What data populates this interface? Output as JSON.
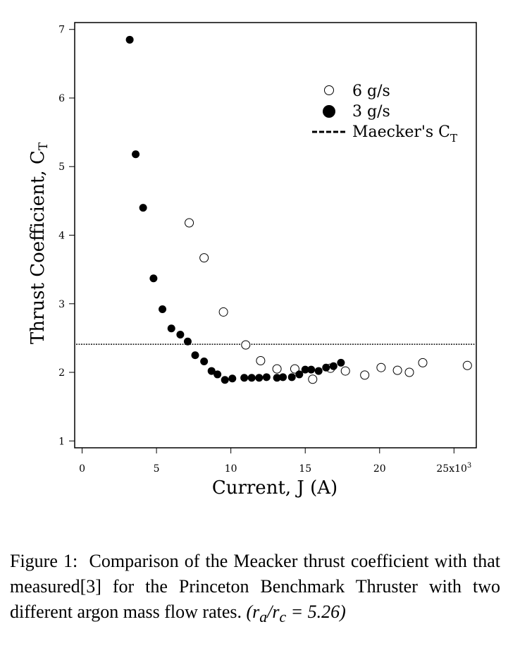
{
  "chart_data": {
    "type": "scatter",
    "title": "",
    "xlabel": "Current, J  (A)",
    "ylabel": "Thrust Coefficient, C",
    "ylabel_subscript": "T",
    "xlim": [
      -0.5,
      26.5
    ],
    "ylim": [
      0.9,
      7.1
    ],
    "x_ticks": [
      0,
      5,
      10,
      15,
      20,
      25
    ],
    "x_tick_labels": [
      "0",
      "5",
      "10",
      "15",
      "20",
      "25x10"
    ],
    "x_tick_label_superscript": "3",
    "y_ticks": [
      1,
      2,
      3,
      4,
      5,
      6,
      7
    ],
    "y_tick_labels": [
      "1",
      "2",
      "3",
      "4",
      "5",
      "6",
      "7"
    ],
    "grid": false,
    "legend_position": "top-right",
    "series": [
      {
        "name": "6 g/s",
        "marker": "open-circle",
        "x": [
          7.2,
          8.2,
          9.5,
          11.0,
          12.0,
          13.1,
          14.3,
          15.5,
          16.7,
          17.7,
          19.0,
          20.1,
          21.2,
          22.0,
          22.9,
          25.9
        ],
        "y": [
          4.18,
          3.67,
          2.88,
          2.4,
          2.17,
          2.05,
          2.05,
          1.9,
          2.06,
          2.02,
          1.96,
          2.07,
          2.03,
          2.0,
          2.14,
          2.1
        ]
      },
      {
        "name": "3 g/s",
        "marker": "filled-circle",
        "x": [
          3.2,
          3.6,
          4.1,
          4.8,
          5.4,
          6.0,
          6.6,
          7.1,
          7.6,
          8.2,
          8.7,
          9.1,
          9.6,
          10.1,
          10.9,
          11.4,
          11.9,
          12.4,
          13.1,
          13.5,
          14.1,
          14.6,
          15.0,
          15.4,
          15.9,
          16.4,
          16.9,
          17.4
        ],
        "y": [
          6.85,
          5.18,
          4.4,
          3.37,
          2.92,
          2.64,
          2.55,
          2.45,
          2.25,
          2.16,
          2.02,
          1.97,
          1.89,
          1.91,
          1.92,
          1.92,
          1.92,
          1.93,
          1.92,
          1.93,
          1.93,
          1.97,
          2.04,
          2.04,
          2.02,
          2.07,
          2.09,
          2.14
        ]
      }
    ],
    "reference_line": {
      "name": "Maecker's C",
      "name_subscript": "T",
      "y": 2.41,
      "style": "dashed"
    }
  },
  "caption": {
    "label": "Figure 1:",
    "text": "Comparison of the Meacker thrust coefficient with that measured[3] for the Princeton Benchmark Thruster with two different argon mass flow rates.",
    "ratio": "(r_a/r_c = 5.26)"
  }
}
